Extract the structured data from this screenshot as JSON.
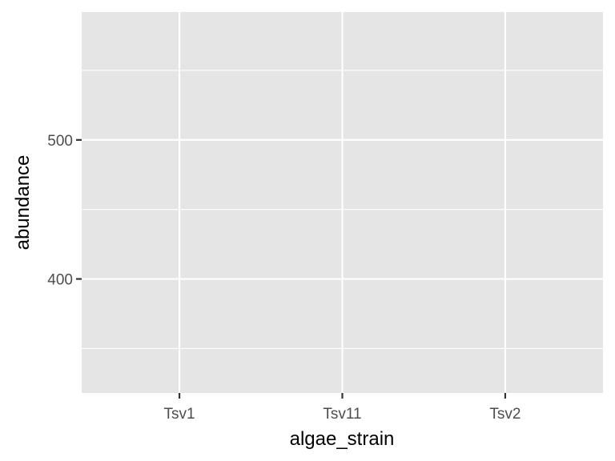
{
  "chart_data": {
    "type": "bar",
    "categories": [
      "Tsv1",
      "Tsv11",
      "Tsv2"
    ],
    "series": [],
    "xlabel": "algae_strain",
    "ylabel": "abundance",
    "ylim": [
      318,
      592
    ],
    "y_major_ticks": [
      400,
      500
    ],
    "y_minor_ticks": [
      350,
      450,
      550
    ],
    "grid": true,
    "colors": {
      "panel": "#e5e5e5",
      "grid": "#ffffff",
      "tick": "#333333",
      "tick_label": "#4d4d4d",
      "axis_title": "#000000"
    }
  }
}
